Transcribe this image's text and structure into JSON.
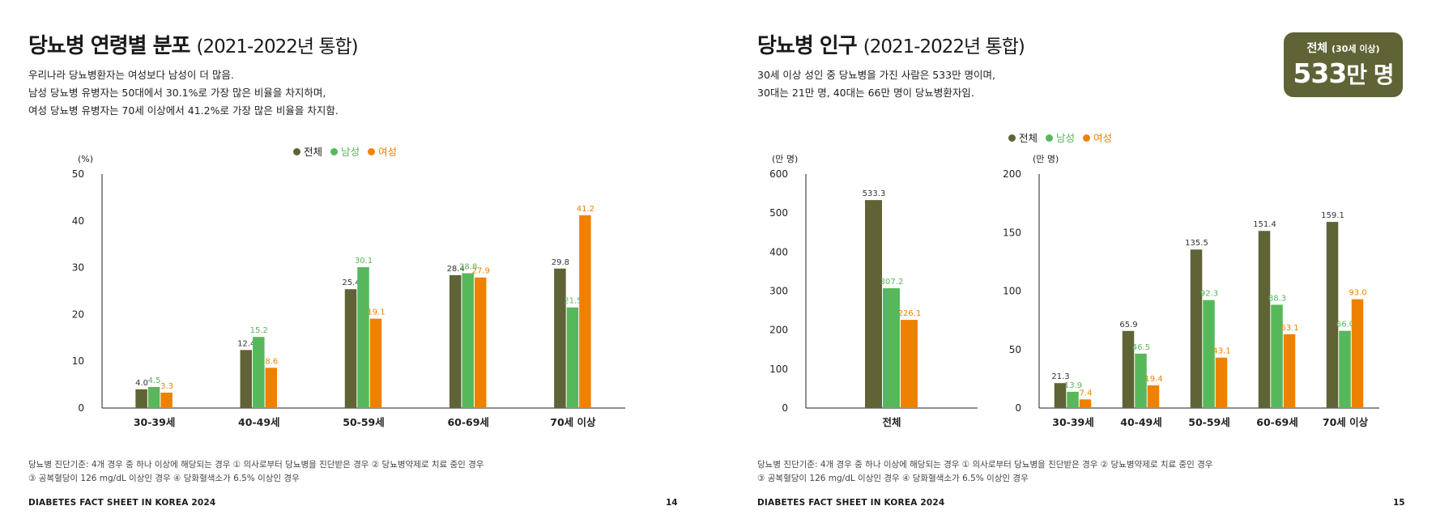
{
  "left_page": {
    "title": "당뇨병 연령별 분포",
    "title_sub": "(2021-2022년 통합)",
    "desc": [
      "우리나라 당뇨병환자는 여성보다 남성이 더 많음.",
      "남성 당뇨병 유병자는 50대에서 30.1%로 가장 많은 비율을 차지하며,",
      "여성 당뇨병 유병자는 70세 이상에서 41.2%로 가장 많은 비율을 차지함."
    ],
    "footnote": [
      "당뇨병 진단기준: 4개 경우 중 하나 이상에 해당되는 경우 ① 의사로부터 당뇨병을 진단받은 경우 ② 당뇨병약제로 치료 중인 경우",
      "③ 공복혈당이 126 mg/dL 이상인 경우 ④ 당화혈색소가 6.5% 이상인 경우"
    ],
    "brand": "DIABETES FACT SHEET IN KOREA 2024",
    "page_number": "14"
  },
  "right_page": {
    "title": "당뇨병 인구",
    "title_sub": "(2021-2022년 통합)",
    "desc": [
      "30세 이상 성인 중 당뇨병을 가진 사람은 533만 명이며,",
      "30대는 21만 명, 40대는 66만 명이 당뇨병환자임."
    ],
    "badge": {
      "label": "전체",
      "label_small": "(30세 이상)",
      "value": "533",
      "unit": "만 명"
    },
    "footnote": [
      "당뇨병 진단기준: 4개 경우 중 하나 이상에 해당되는 경우 ① 의사로부터 당뇨병을 진단받은 경우 ② 당뇨병약제로 치료 중인 경우",
      "③ 공복혈당이 126 mg/dL 이상인 경우 ④ 당화혈색소가 6.5% 이상인 경우"
    ],
    "brand": "DIABETES FACT SHEET IN KOREA 2024",
    "page_number": "15"
  },
  "legend": {
    "total": "전체",
    "male": "남성",
    "female": "여성"
  },
  "colors": {
    "total": "#5f6335",
    "male": "#56b85a",
    "female": "#ee8200",
    "axis": "#222222"
  },
  "chart_data": [
    {
      "type": "bar",
      "ylabel": "(%)",
      "ylim": [
        0,
        50
      ],
      "yticks": [
        0,
        10,
        20,
        30,
        40,
        50
      ],
      "categories": [
        "30-39세",
        "40-49세",
        "50-59세",
        "60-69세",
        "70세 이상"
      ],
      "series": [
        {
          "name": "전체",
          "values": [
            4.0,
            12.4,
            25.4,
            28.4,
            29.8
          ],
          "labels": [
            "4.0",
            "12.4",
            "25.4",
            "28.4",
            "29.8"
          ]
        },
        {
          "name": "남성",
          "values": [
            4.5,
            15.2,
            30.1,
            28.8,
            21.5
          ],
          "labels": [
            "4.5",
            "15.2",
            "30.1",
            "28.8",
            "21.5"
          ]
        },
        {
          "name": "여성",
          "values": [
            3.3,
            8.6,
            19.1,
            27.9,
            41.2
          ],
          "labels": [
            "3.3",
            "8.6",
            "19.1",
            "27.9",
            "41.2"
          ]
        }
      ],
      "legend": "top-center",
      "grid": false
    },
    {
      "type": "bar",
      "ylabel": "(만 명)",
      "ylim": [
        0,
        600
      ],
      "yticks": [
        0,
        100,
        200,
        300,
        400,
        500,
        600
      ],
      "categories": [
        "전체"
      ],
      "series": [
        {
          "name": "전체",
          "values": [
            533.3
          ],
          "labels": [
            "533.3"
          ]
        },
        {
          "name": "남성",
          "values": [
            307.2
          ],
          "labels": [
            "307.2"
          ]
        },
        {
          "name": "여성",
          "values": [
            226.1
          ],
          "labels": [
            "226.1"
          ]
        }
      ],
      "grid": false
    },
    {
      "type": "bar",
      "ylabel": "(만 명)",
      "ylim": [
        0,
        200
      ],
      "yticks": [
        0,
        50,
        100,
        150,
        200
      ],
      "categories": [
        "30-39세",
        "40-49세",
        "50-59세",
        "60-69세",
        "70세 이상"
      ],
      "series": [
        {
          "name": "전체",
          "values": [
            21.3,
            65.9,
            135.5,
            151.4,
            159.1
          ],
          "labels": [
            "21.3",
            "65.9",
            "135.5",
            "151.4",
            "159.1"
          ]
        },
        {
          "name": "남성",
          "values": [
            13.9,
            46.5,
            92.3,
            88.3,
            66.0
          ],
          "labels": [
            "13.9",
            "46.5",
            "92.3",
            "88.3",
            "66.0"
          ]
        },
        {
          "name": "여성",
          "values": [
            7.4,
            19.4,
            43.1,
            63.1,
            93.0
          ],
          "labels": [
            "7.4",
            "19.4",
            "43.1",
            "63.1",
            "93.0"
          ]
        }
      ],
      "legend": "top-left",
      "grid": false
    }
  ]
}
